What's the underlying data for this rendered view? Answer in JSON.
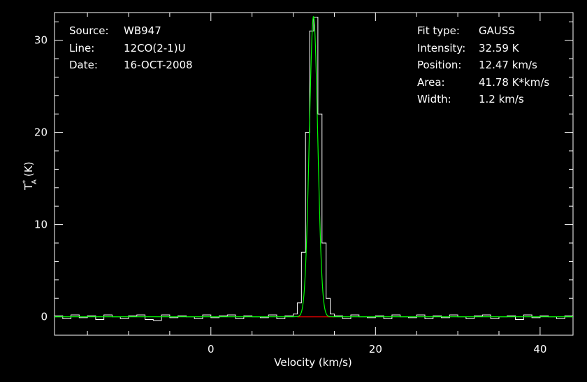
{
  "info_left": [
    {
      "label": "Source:",
      "value": "WB947"
    },
    {
      "label": "Line:",
      "value": "12CO(2-1)U"
    },
    {
      "label": "Date:",
      "value": "16-OCT-2008"
    }
  ],
  "info_right": [
    {
      "label": "Fit type:",
      "value": "GAUSS"
    },
    {
      "label": "Intensity:",
      "value": "32.59 K"
    },
    {
      "label": "Position:",
      "value": "12.47 km/s"
    },
    {
      "label": "Area:",
      "value": "41.78 K*km/s"
    },
    {
      "label": "Width:",
      "value": "1.2 km/s"
    }
  ],
  "colors": {
    "background": "#000000",
    "axes": "#ffffff",
    "spectrum": "#ffffff",
    "fit": "#00ff00",
    "baseline": "#cc0000"
  },
  "chart_data": {
    "type": "line",
    "title": "",
    "xlabel": "Velocity (km/s)",
    "ylabel": "T*A (K)",
    "xlim": [
      -19,
      44
    ],
    "ylim": [
      -2,
      33
    ],
    "xticks": [
      0,
      20,
      40
    ],
    "yticks": [
      0,
      10,
      20,
      30
    ],
    "grid": false,
    "series": [
      {
        "type": "histogram",
        "x": [
          -19,
          -18,
          -17,
          -16,
          -15,
          -14,
          -13,
          -12,
          -11,
          -10,
          -9,
          -8,
          -7,
          -6,
          -5,
          -4,
          -3,
          -2,
          -1,
          0,
          1,
          2,
          3,
          4,
          5,
          6,
          7,
          8,
          9,
          10,
          10.5,
          11,
          11.5,
          12,
          12.5,
          13,
          13.5,
          14,
          14.5,
          15,
          16,
          17,
          18,
          19,
          20,
          21,
          22,
          23,
          24,
          25,
          26,
          27,
          28,
          29,
          30,
          31,
          32,
          33,
          34,
          35,
          36,
          37,
          38,
          39,
          40,
          41,
          42,
          43,
          44
        ],
        "values": [
          0.1,
          -0.2,
          0.2,
          -0.1,
          0.1,
          -0.3,
          0.2,
          0.0,
          -0.2,
          0.1,
          0.2,
          -0.3,
          -0.4,
          0.2,
          -0.1,
          0.1,
          0.0,
          -0.2,
          0.2,
          -0.1,
          0.1,
          0.2,
          -0.2,
          0.1,
          0.0,
          -0.1,
          0.2,
          -0.2,
          0.1,
          0.3,
          1.5,
          7.0,
          20.0,
          31.0,
          32.5,
          22.0,
          8.0,
          2.0,
          0.3,
          0.1,
          -0.2,
          0.2,
          0.0,
          -0.1,
          0.1,
          -0.2,
          0.2,
          0.0,
          -0.1,
          0.2,
          -0.2,
          0.1,
          -0.1,
          0.2,
          0.0,
          -0.2,
          0.1,
          0.2,
          -0.2,
          0.0,
          0.1,
          -0.3,
          0.2,
          -0.1,
          0.1,
          0.0,
          -0.2,
          0.1,
          0.0
        ]
      },
      {
        "type": "gaussian-fit",
        "amplitude": 32.59,
        "center": 12.47,
        "fwhm": 1.2
      },
      {
        "type": "baseline",
        "x": [
          10.5,
          15
        ],
        "values": [
          0,
          0
        ]
      }
    ]
  }
}
